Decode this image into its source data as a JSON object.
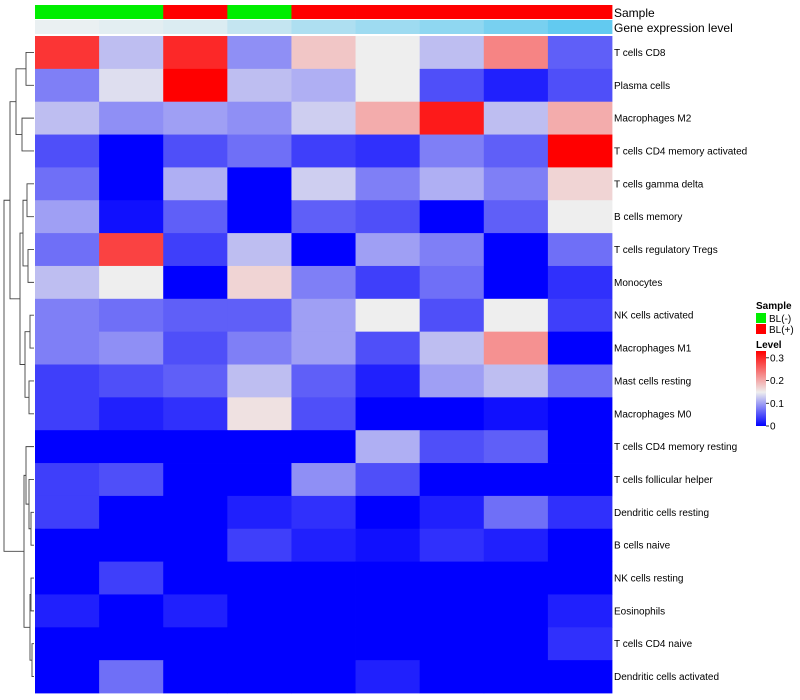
{
  "chart_data": {
    "type": "heatmap",
    "rows": [
      "T cells CD8",
      "Plasma cells",
      "Macrophages M2",
      "T cells CD4 memory activated",
      "T cells gamma delta",
      "B cells memory",
      "T cells regulatory  Tregs",
      "Monocytes",
      "NK cells activated",
      "Macrophages M1",
      "Mast cells resting",
      "Macrophages M0",
      "T cells CD4 memory resting",
      "T cells follicular helper",
      "Dendritic cells resting",
      "B cells naive",
      "NK cells resting",
      "Eosinophils",
      "T cells CD4 naive",
      "Dendritic cells activated"
    ],
    "columns": 9,
    "values": [
      [
        0.29,
        0.12,
        0.3,
        0.09,
        0.18,
        0.15,
        0.12,
        0.23,
        0.06
      ],
      [
        0.08,
        0.14,
        0.33,
        0.12,
        0.11,
        0.15,
        0.05,
        0.02,
        0.05
      ],
      [
        0.12,
        0.09,
        0.1,
        0.09,
        0.13,
        0.2,
        0.31,
        0.12,
        0.2
      ],
      [
        0.05,
        0.0,
        0.05,
        0.07,
        0.04,
        0.03,
        0.08,
        0.06,
        0.33
      ],
      [
        0.07,
        0.0,
        0.11,
        0.0,
        0.13,
        0.08,
        0.11,
        0.08,
        0.17
      ],
      [
        0.1,
        0.01,
        0.06,
        0.0,
        0.06,
        0.05,
        0.0,
        0.06,
        0.15
      ],
      [
        0.07,
        0.28,
        0.04,
        0.12,
        0.0,
        0.1,
        0.08,
        0.0,
        0.07
      ],
      [
        0.12,
        0.15,
        0.0,
        0.17,
        0.08,
        0.04,
        0.07,
        0.0,
        0.03
      ],
      [
        0.08,
        0.07,
        0.06,
        0.06,
        0.1,
        0.15,
        0.05,
        0.15,
        0.04
      ],
      [
        0.08,
        0.09,
        0.05,
        0.08,
        0.1,
        0.05,
        0.12,
        0.22,
        0.0
      ],
      [
        0.04,
        0.05,
        0.06,
        0.12,
        0.06,
        0.02,
        0.1,
        0.12,
        0.07
      ],
      [
        0.04,
        0.02,
        0.03,
        0.16,
        0.05,
        0.0,
        0.0,
        0.01,
        0.0
      ],
      [
        0.0,
        0.0,
        0.0,
        0.0,
        0.0,
        0.11,
        0.05,
        0.06,
        0.0
      ],
      [
        0.04,
        0.05,
        0.0,
        0.0,
        0.09,
        0.05,
        0.0,
        0.0,
        0.0
      ],
      [
        0.04,
        0.0,
        0.0,
        0.02,
        0.03,
        0.0,
        0.02,
        0.07,
        0.03
      ],
      [
        0.0,
        0.0,
        0.0,
        0.04,
        0.02,
        0.01,
        0.03,
        0.02,
        0.0
      ],
      [
        0.0,
        0.04,
        0.0,
        0.0,
        0.0,
        0.0,
        0.0,
        0.0,
        0.0
      ],
      [
        0.02,
        0.0,
        0.02,
        0.0,
        0.0,
        0.0,
        0.0,
        0.0,
        0.02
      ],
      [
        0.0,
        0.0,
        0.0,
        0.0,
        0.0,
        0.0,
        0.0,
        0.0,
        0.03
      ],
      [
        0.0,
        0.07,
        0.0,
        0.0,
        0.0,
        0.02,
        0.0,
        0.0,
        0.0
      ]
    ],
    "color_scale": {
      "low": "#0000ff",
      "mid": "#eeeeee",
      "high": "#ff0000",
      "min": 0,
      "mid_value": 0.15,
      "max": 0.33
    },
    "column_annotations": [
      {
        "name": "Sample",
        "values": [
          "BL(-)",
          "BL(-)",
          "BL(+)",
          "BL(-)",
          "BL(+)",
          "BL(+)",
          "BL(+)",
          "BL(+)",
          "BL(+)"
        ]
      },
      {
        "name": "Gene expression level",
        "values": [
          0.05,
          0.1,
          0.15,
          0.3,
          0.45,
          0.55,
          0.65,
          0.8,
          0.95
        ]
      }
    ],
    "expression_annotation_colors": {
      "low": "#f2f2f2",
      "high": "#5ac8f0"
    },
    "legend": {
      "sample": {
        "title": "Sample",
        "entries": [
          {
            "label": "BL(-)",
            "color": "#00ee00"
          },
          {
            "label": "BL(+)",
            "color": "#ff0000"
          }
        ]
      },
      "level": {
        "title": "Level",
        "ticks": [
          0.3,
          0.2,
          0.1,
          0
        ]
      }
    },
    "row_dendrogram": true,
    "legend_position": "right"
  }
}
